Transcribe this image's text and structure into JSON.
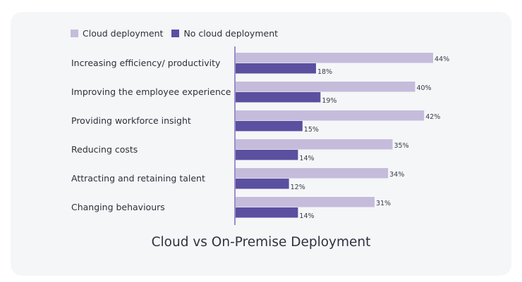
{
  "chart_data": {
    "type": "bar",
    "orientation": "horizontal",
    "title": "Cloud vs On-Premise Deployment",
    "categories": [
      "Increasing efficiency/ productivity",
      "Improving the employee experience",
      "Providing workforce insight",
      "Reducing costs",
      "Attracting and retaining talent",
      "Changing behaviours"
    ],
    "series": [
      {
        "name": "Cloud deployment",
        "values": [
          44,
          40,
          42,
          35,
          34,
          31
        ],
        "color": "#c5bcdc"
      },
      {
        "name": "No cloud deployment",
        "values": [
          18,
          19,
          15,
          14,
          12,
          14
        ],
        "color": "#5b4fa0"
      }
    ],
    "value_suffix": "%",
    "xlim": [
      0,
      50
    ],
    "grid": false,
    "legend": "top-left",
    "axis_color": "#9a8fc8"
  }
}
